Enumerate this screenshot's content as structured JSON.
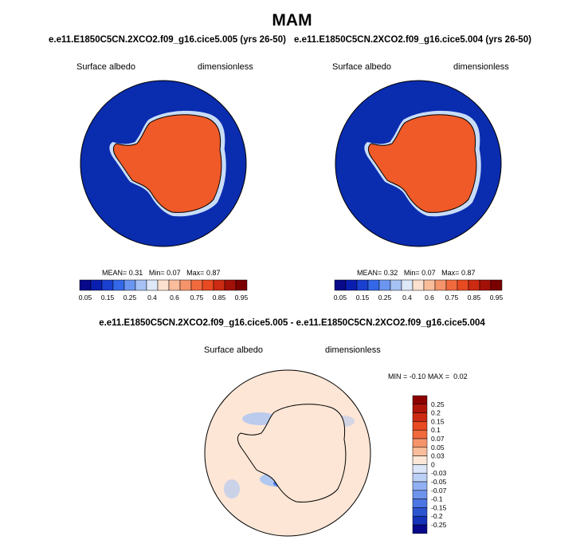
{
  "title": "MAM",
  "panels": [
    {
      "case": "e.e11.E1850C5CN.2XCO2.f09_g16.cice5.005 (yrs 26-50)",
      "variable": "Surface albedo",
      "units": "dimensionless",
      "mean_label": "MEAN=",
      "mean_value": "0.31",
      "min_label": "Min=",
      "min_value": "0.07",
      "max_label": "Max=",
      "max_value": "0.87"
    },
    {
      "case": "e.e11.E1850C5CN.2XCO2.f09_g16.cice5.004 (yrs 26-50)",
      "variable": "Surface albedo",
      "units": "dimensionless",
      "mean_label": "MEAN=",
      "mean_value": "0.32",
      "min_label": "Min=",
      "min_value": "0.07",
      "max_label": "Max=",
      "max_value": "0.87"
    }
  ],
  "colorbar_levels": [
    "0.05",
    "0.15",
    "0.25",
    "0.4",
    "0.6",
    "0.75",
    "0.85",
    "0.95"
  ],
  "colorbar_colors": [
    "#07098a",
    "#0a1fb0",
    "#1a40d0",
    "#3468e8",
    "#6b95f0",
    "#a6c1f4",
    "#dde8f8",
    "#fbe0cf",
    "#f9bd9c",
    "#f5946a",
    "#f06a3e",
    "#e84a22",
    "#cc2a12",
    "#a21008",
    "#7a0000"
  ],
  "diff": {
    "title": "e.e11.E1850C5CN.2XCO2.f09_g16.cice5.005 - e.e11.E1850C5CN.2XCO2.f09_g16.cice5.004",
    "variable": "Surface albedo",
    "units": "dimensionless",
    "min_label": "MIN =",
    "min_value": "-0.10",
    "max_label": "MAX =",
    "max_value": "0.02",
    "levels": [
      "0.25",
      "0.2",
      "0.15",
      "0.1",
      "0.07",
      "0.05",
      "0.03",
      "0",
      "-0.03",
      "-0.05",
      "-0.07",
      "-0.1",
      "-0.15",
      "-0.2",
      "-0.25"
    ],
    "colors": [
      "#8c0000",
      "#b01408",
      "#cc2a12",
      "#e84a22",
      "#f06a3e",
      "#f5946a",
      "#f9bd9c",
      "#fde6d6",
      "#dbe6f8",
      "#bcd0f6",
      "#90b0f2",
      "#6e94ec",
      "#4d76e4",
      "#2d54d0",
      "#1533b8",
      "#07098a"
    ]
  },
  "map_colors": {
    "ocean": "#0a2cae",
    "ice_high": "#f05a28",
    "ice_edge": "#c8dcf8",
    "diff_bg": "#fde6d6",
    "diff_neg": "#a9c4f2"
  }
}
